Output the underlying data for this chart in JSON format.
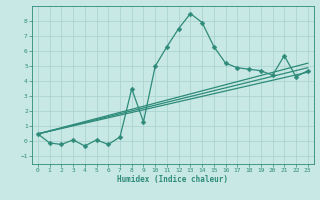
{
  "xlabel": "Humidex (Indice chaleur)",
  "x_values": [
    0,
    1,
    2,
    3,
    4,
    5,
    6,
    7,
    8,
    9,
    10,
    11,
    12,
    13,
    14,
    15,
    16,
    17,
    18,
    19,
    20,
    21,
    22,
    23
  ],
  "main_line": [
    0.5,
    -0.1,
    -0.2,
    0.1,
    -0.3,
    0.1,
    -0.2,
    0.3,
    3.5,
    1.3,
    5.0,
    6.3,
    7.5,
    8.5,
    7.9,
    6.3,
    5.2,
    4.9,
    4.8,
    4.7,
    4.4,
    5.7,
    4.3,
    4.7
  ],
  "trend1_x": [
    0,
    23
  ],
  "trend1_y": [
    0.5,
    4.6
  ],
  "trend2_x": [
    0,
    23
  ],
  "trend2_y": [
    0.5,
    4.9
  ],
  "trend3_x": [
    0,
    23
  ],
  "trend3_y": [
    0.5,
    5.2
  ],
  "line_color": "#2e8b7a",
  "bg_color": "#c8e8e5",
  "grid_color": "#acd4d0",
  "ylim": [
    -1.5,
    9.0
  ],
  "xlim": [
    -0.5,
    23.5
  ],
  "yticks": [
    -1,
    0,
    1,
    2,
    3,
    4,
    5,
    6,
    7,
    8
  ],
  "xticks": [
    0,
    1,
    2,
    3,
    4,
    5,
    6,
    7,
    8,
    9,
    10,
    11,
    12,
    13,
    14,
    15,
    16,
    17,
    18,
    19,
    20,
    21,
    22,
    23
  ]
}
